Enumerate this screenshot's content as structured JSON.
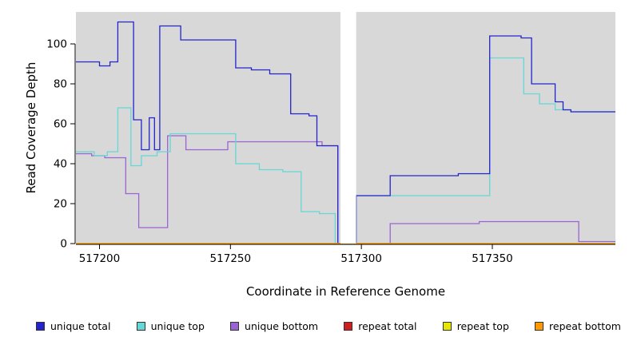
{
  "chart_data": {
    "type": "line",
    "title": "",
    "xlabel": "Coordinate in Reference Genome",
    "ylabel": "Read Coverage Depth",
    "xlim": [
      517191,
      517397
    ],
    "ylim": [
      0,
      116
    ],
    "x_ticks": [
      517200,
      517250,
      517300,
      517350
    ],
    "y_ticks": [
      0,
      20,
      40,
      60,
      80,
      100
    ],
    "plot_bg": "#d8d8d8",
    "gap_region": [
      517292,
      517298
    ],
    "draw_order": [
      2,
      1,
      0,
      3,
      4,
      5
    ],
    "series": [
      {
        "name": "unique total",
        "color": "#2424cc",
        "step": true,
        "points": [
          [
            517191,
            91
          ],
          [
            517200,
            89
          ],
          [
            517204,
            91
          ],
          [
            517207,
            111
          ],
          [
            517213,
            62
          ],
          [
            517216,
            47
          ],
          [
            517219,
            63
          ],
          [
            517221,
            47
          ],
          [
            517223,
            109
          ],
          [
            517231,
            102
          ],
          [
            517252,
            88
          ],
          [
            517258,
            87
          ],
          [
            517265,
            85
          ],
          [
            517273,
            65
          ],
          [
            517280,
            64
          ],
          [
            517283,
            49
          ],
          [
            517291,
            0
          ],
          [
            517298,
            24
          ],
          [
            517311,
            34
          ],
          [
            517337,
            35
          ],
          [
            517349,
            104
          ],
          [
            517361,
            103
          ],
          [
            517365,
            80
          ],
          [
            517374,
            71
          ],
          [
            517377,
            67
          ],
          [
            517380,
            66
          ],
          [
            517397,
            66
          ]
        ]
      },
      {
        "name": "unique top",
        "color": "#66d6d6",
        "step": true,
        "points": [
          [
            517191,
            46
          ],
          [
            517198,
            44
          ],
          [
            517203,
            46
          ],
          [
            517207,
            68
          ],
          [
            517212,
            39
          ],
          [
            517216,
            44
          ],
          [
            517222,
            46
          ],
          [
            517227,
            55
          ],
          [
            517252,
            40
          ],
          [
            517261,
            37
          ],
          [
            517270,
            36
          ],
          [
            517277,
            16
          ],
          [
            517284,
            15
          ],
          [
            517290,
            0
          ],
          [
            517298,
            24
          ],
          [
            517349,
            93
          ],
          [
            517362,
            75
          ],
          [
            517368,
            70
          ],
          [
            517374,
            67
          ],
          [
            517380,
            66
          ],
          [
            517397,
            66
          ]
        ]
      },
      {
        "name": "unique bottom",
        "color": "#9a63d2",
        "step": true,
        "points": [
          [
            517191,
            45
          ],
          [
            517197,
            44
          ],
          [
            517202,
            43
          ],
          [
            517210,
            25
          ],
          [
            517215,
            8
          ],
          [
            517226,
            54
          ],
          [
            517233,
            47
          ],
          [
            517249,
            51
          ],
          [
            517285,
            49
          ],
          [
            517291,
            0
          ],
          [
            517311,
            10
          ],
          [
            517345,
            11
          ],
          [
            517383,
            1
          ],
          [
            517397,
            1
          ]
        ]
      },
      {
        "name": "repeat total",
        "color": "#cc2020",
        "step": true,
        "points": [
          [
            517191,
            0
          ],
          [
            517397,
            0
          ]
        ]
      },
      {
        "name": "repeat top",
        "color": "#e6e600",
        "step": true,
        "points": [
          [
            517191,
            0
          ],
          [
            517397,
            0
          ]
        ]
      },
      {
        "name": "repeat bottom",
        "color": "#ff9900",
        "step": true,
        "points": [
          [
            517191,
            0
          ],
          [
            517397,
            0
          ]
        ]
      }
    ]
  }
}
